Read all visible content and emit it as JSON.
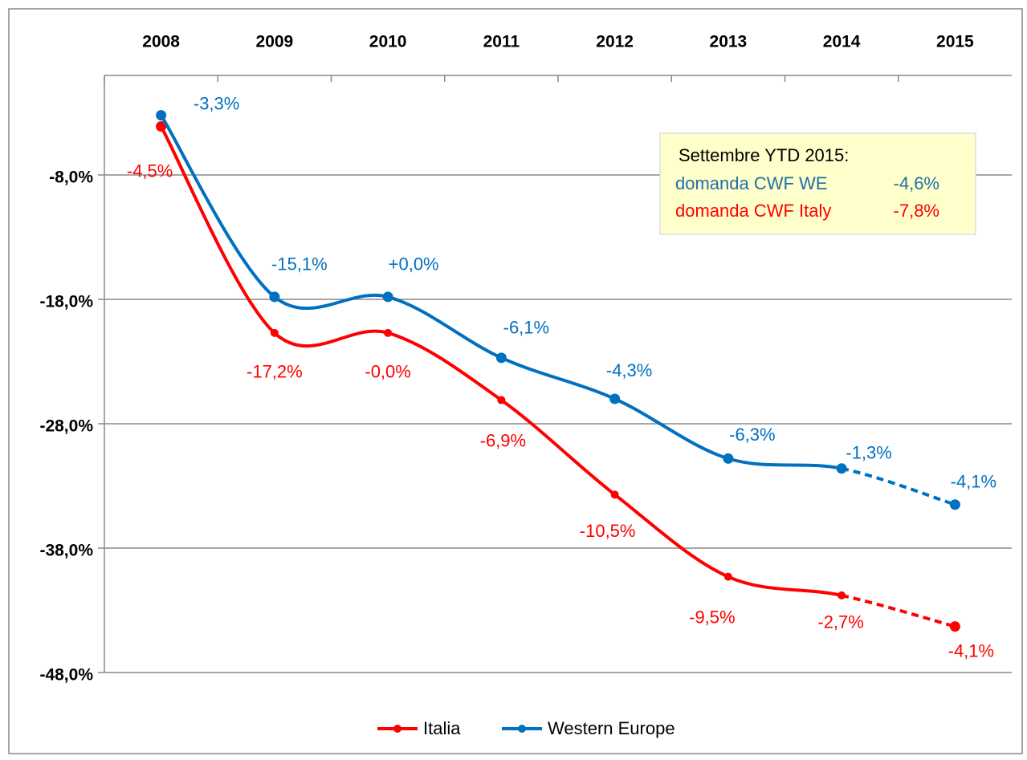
{
  "chart_data": {
    "type": "line",
    "categories": [
      "2008",
      "2009",
      "2010",
      "2011",
      "2012",
      "2013",
      "2014",
      "2015"
    ],
    "series": [
      {
        "name": "Italia",
        "color": "#ff0000",
        "dashed_last_segment": true,
        "values": [
          -4.1,
          -20.7,
          -20.7,
          -26.1,
          -33.7,
          -40.3,
          -41.8,
          -44.3
        ],
        "point_labels": [
          "-4,5%",
          "-17,2%",
          "-0,0%",
          "-6,9%",
          "-10,5%",
          "-9,5%",
          "-2,7%",
          "-4,1%"
        ]
      },
      {
        "name": "Western Europe",
        "color": "#0070c0",
        "dashed_last_segment": true,
        "values": [
          -3.2,
          -17.8,
          -17.8,
          -22.7,
          -26.0,
          -30.8,
          -31.6,
          -34.5
        ],
        "point_labels": [
          "-3,3%",
          "-15,1%",
          "+0,0%",
          "-6,1%",
          "-4,3%",
          "-6,3%",
          "-1,3%",
          "-4,1%"
        ]
      }
    ],
    "ylim": [
      -48,
      0
    ],
    "yticks": [
      {
        "value": -8,
        "label": "-8,0%"
      },
      {
        "value": -18,
        "label": "-18,0%"
      },
      {
        "value": -28,
        "label": "-28,0%"
      },
      {
        "value": -38,
        "label": "-38,0%"
      },
      {
        "value": -48,
        "label": "-48,0%"
      }
    ],
    "grid": true,
    "annotation": {
      "title": "Settembre YTD  2015:",
      "lines": [
        {
          "text": "domanda CWF WE",
          "value": "-4,6%",
          "color": "#1f6fa8"
        },
        {
          "text": "domanda CWF Italy",
          "value": "-7,8%",
          "color": "#ff0000"
        }
      ]
    }
  }
}
